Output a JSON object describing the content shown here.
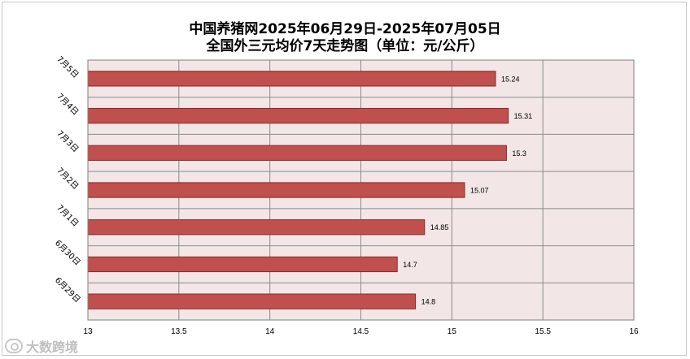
{
  "chart_data": {
    "type": "bar",
    "orientation": "horizontal",
    "title_line1": "中国养猪网2025年06月29日-2025年07月05日",
    "title_line2": "全国外三元均价7天走势图（单位：元/公斤）",
    "categories": [
      "7月5日",
      "7月4日",
      "7月3日",
      "7月2日",
      "7月1日",
      "6月30日",
      "6月29日"
    ],
    "values": [
      15.24,
      15.31,
      15.3,
      15.07,
      14.85,
      14.7,
      14.8
    ],
    "value_labels": [
      "15.24",
      "15.31",
      "15.3",
      "15.07",
      "14.85",
      "14.7",
      "14.8"
    ],
    "xlim": [
      13,
      16
    ],
    "xticks": [
      "13",
      "13.5",
      "14",
      "14.5",
      "15",
      "15.5",
      "16"
    ],
    "xlabel": "",
    "ylabel": "",
    "grid": true,
    "legend": "none",
    "colors": {
      "bar": "#c0504d",
      "bar_edge": "#8b2a27",
      "plot_bg": "#f2e6e6",
      "grid": "#8c8c8c"
    }
  },
  "watermark": "大数跨境"
}
